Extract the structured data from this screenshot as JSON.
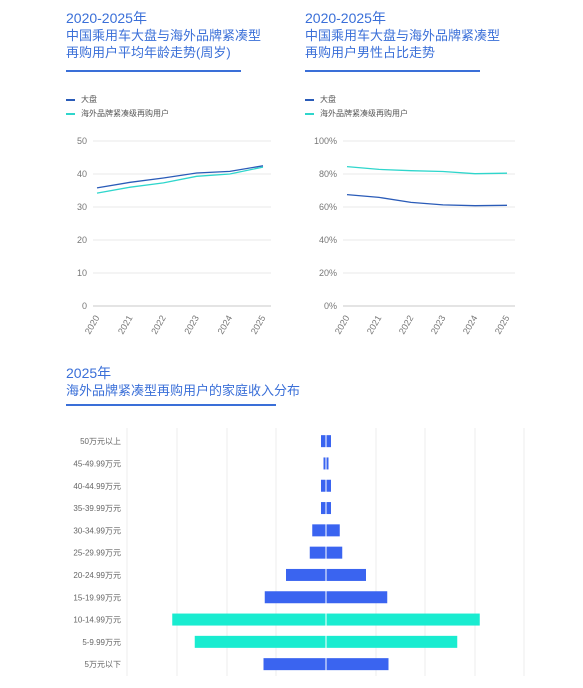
{
  "colors": {
    "dapan": "#2a5bb8",
    "overseas": "#2fd6cc",
    "bar_blue": "#3a64f0",
    "bar_teal": "#19ecd0",
    "title": "#3a6fd8"
  },
  "left": {
    "title_line1": "2020-2025年",
    "title_line2": "中国乘用车大盘与海外品牌紧凑型",
    "title_line3": "再购用户平均年龄走势(周岁)"
  },
  "right": {
    "title_line1": "2020-2025年",
    "title_line2": "中国乘用车大盘与海外品牌紧凑型",
    "title_line3": "再购用户男性占比走势"
  },
  "bottom": {
    "title_line1": "2025年",
    "title_line2": "海外品牌紧凑型再购用户的家庭收入分布"
  },
  "legend": {
    "dapan": "大盘",
    "overseas": "海外品牌紧凑级再购用户"
  },
  "chart_data": [
    {
      "type": "line",
      "x": [
        "2020",
        "2021",
        "2022",
        "2023",
        "2024",
        "2025"
      ],
      "ylim": [
        0,
        50
      ],
      "yticks": [
        "0",
        "10",
        "20",
        "30",
        "40",
        "50"
      ],
      "series": [
        {
          "name": "大盘",
          "values": [
            35.8,
            37.5,
            38.8,
            40.3,
            40.8,
            42.5
          ]
        },
        {
          "name": "海外品牌紧凑级再购用户",
          "values": [
            34.2,
            36.0,
            37.3,
            39.3,
            40.0,
            42.1
          ]
        }
      ]
    },
    {
      "type": "line",
      "x": [
        "2020",
        "2021",
        "2022",
        "2023",
        "2024",
        "2025"
      ],
      "ylim": [
        0,
        100
      ],
      "yticks": [
        "0%",
        "20%",
        "40%",
        "60%",
        "80%",
        "100%"
      ],
      "series": [
        {
          "name": "大盘",
          "values": [
            67.5,
            65.8,
            62.8,
            61.3,
            60.8,
            61.0
          ]
        },
        {
          "name": "海外品牌紧凑级再购用户",
          "values": [
            84.5,
            82.8,
            82.0,
            81.5,
            80.2,
            80.5
          ]
        }
      ]
    },
    {
      "type": "bar",
      "orientation": "horizontal-diverging",
      "categories": [
        "50万元以上",
        "45-49.99万元",
        "40-44.99万元",
        "35-39.99万元",
        "30-34.99万元",
        "25-29.99万元",
        "20-24.99万元",
        "15-19.99万元",
        "10-14.99万元",
        "5-9.99万元",
        "5万元以下"
      ],
      "values": [
        2,
        1,
        2,
        2,
        5.5,
        6.5,
        16,
        24.5,
        61.5,
        52.5,
        25
      ],
      "highlight": [
        "10-14.99万元",
        "5-9.99万元"
      ]
    }
  ]
}
